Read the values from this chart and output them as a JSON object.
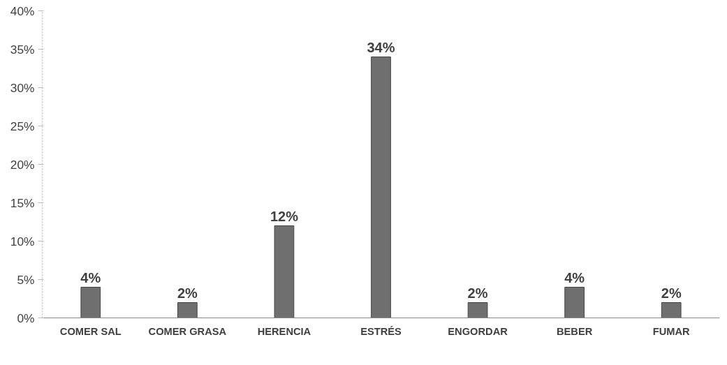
{
  "chart_data": {
    "type": "bar",
    "categories": [
      "COMER SAL",
      "COMER GRASA",
      "HERENCIA",
      "ESTRÉS",
      "ENGORDAR",
      "BEBER",
      "FUMAR"
    ],
    "values": [
      4,
      2,
      12,
      34,
      2,
      4,
      2
    ],
    "value_labels": [
      "4%",
      "2%",
      "12%",
      "34%",
      "2%",
      "4%",
      "2%"
    ],
    "color": "#6f6f6f",
    "ylim": [
      0,
      40
    ],
    "yticks": [
      {
        "value": 0,
        "label": "0%"
      },
      {
        "value": 5,
        "label": "5%"
      },
      {
        "value": 10,
        "label": "10%"
      },
      {
        "value": 15,
        "label": "15%"
      },
      {
        "value": 20,
        "label": "20%"
      },
      {
        "value": 25,
        "label": "25%"
      },
      {
        "value": 30,
        "label": "30%"
      },
      {
        "value": 35,
        "label": "35%"
      },
      {
        "value": 40,
        "label": "40%"
      }
    ],
    "grid": false
  }
}
